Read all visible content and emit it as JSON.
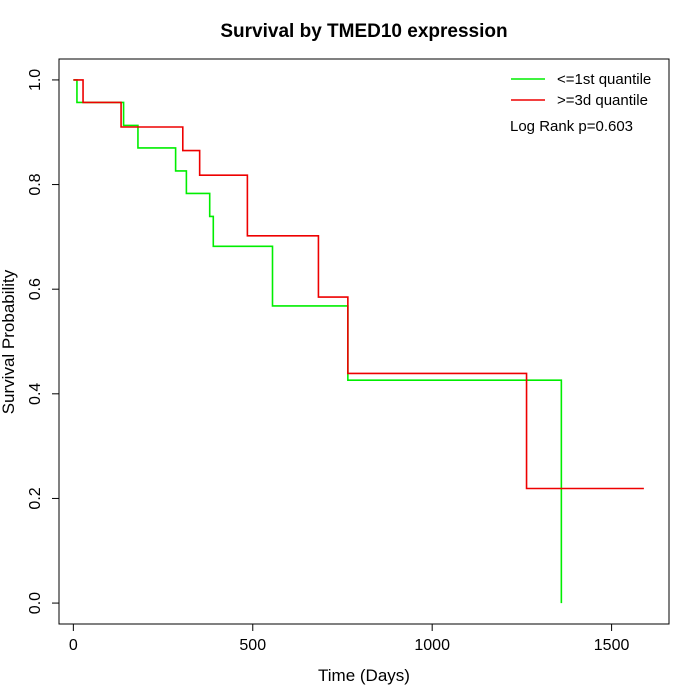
{
  "chart_data": {
    "type": "line",
    "title": "Survival by TMED10 expression",
    "xlabel": "Time (Days)",
    "ylabel": "Survival Probability",
    "xlim": [
      -40,
      1660
    ],
    "ylim": [
      -0.04,
      1.04
    ],
    "x_ticks": [
      0,
      500,
      1000,
      1500
    ],
    "x_tick_labels": [
      "0",
      "500",
      "1000",
      "1500"
    ],
    "y_ticks": [
      0.0,
      0.2,
      0.4,
      0.6,
      0.8,
      1.0
    ],
    "y_tick_labels": [
      "0.0",
      "0.2",
      "0.4",
      "0.6",
      "0.8",
      "1.0"
    ],
    "grid": false,
    "legend_position": "top-right",
    "annotation": "Log Rank p=0.603",
    "series": [
      {
        "name": "<=1st quantile",
        "color": "#00ee00",
        "step": true,
        "points": [
          [
            0,
            1.0
          ],
          [
            10,
            0.957
          ],
          [
            140,
            0.913
          ],
          [
            180,
            0.87
          ],
          [
            285,
            0.826
          ],
          [
            315,
            0.783
          ],
          [
            380,
            0.739
          ],
          [
            390,
            0.682
          ],
          [
            555,
            0.568
          ],
          [
            765,
            0.426
          ],
          [
            1360,
            0.0
          ]
        ]
      },
      {
        "name": ">=3d quantile",
        "color": "#ee0000",
        "step": true,
        "points": [
          [
            0,
            1.0
          ],
          [
            27,
            0.957
          ],
          [
            133,
            0.91
          ],
          [
            305,
            0.865
          ],
          [
            352,
            0.818
          ],
          [
            485,
            0.702
          ],
          [
            683,
            0.585
          ],
          [
            765,
            0.439
          ],
          [
            1263,
            0.219
          ],
          [
            1590,
            0.219
          ]
        ]
      }
    ]
  }
}
